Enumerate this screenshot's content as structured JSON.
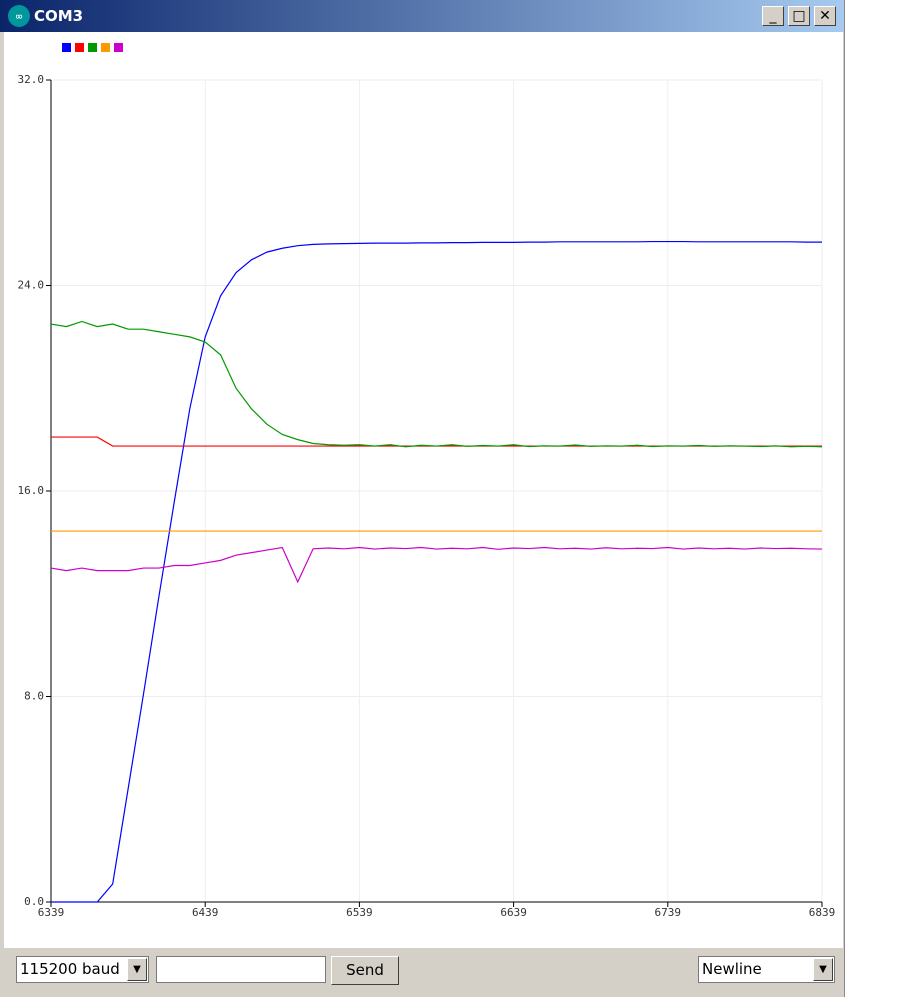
{
  "window": {
    "title": "COM3"
  },
  "controls": {
    "baud": "115200 baud",
    "send": "Send",
    "line_ending": "Newline"
  },
  "chart_data": {
    "type": "line",
    "x": [
      6339,
      6349,
      6359,
      6369,
      6379,
      6389,
      6399,
      6409,
      6419,
      6429,
      6439,
      6449,
      6459,
      6469,
      6479,
      6489,
      6499,
      6509,
      6519,
      6529,
      6539,
      6549,
      6559,
      6569,
      6579,
      6589,
      6599,
      6609,
      6619,
      6629,
      6639,
      6649,
      6659,
      6669,
      6679,
      6689,
      6699,
      6709,
      6719,
      6729,
      6739,
      6749,
      6759,
      6769,
      6779,
      6789,
      6799,
      6809,
      6819,
      6829,
      6839
    ],
    "series": [
      {
        "color": "#0000ff",
        "values": [
          0,
          0,
          0,
          0,
          0.7,
          4.4,
          8.1,
          11.9,
          15.6,
          19.2,
          22.0,
          23.6,
          24.5,
          25.0,
          25.3,
          25.45,
          25.55,
          25.6,
          25.62,
          25.63,
          25.64,
          25.65,
          25.65,
          25.65,
          25.66,
          25.66,
          25.67,
          25.67,
          25.68,
          25.68,
          25.68,
          25.69,
          25.69,
          25.7,
          25.7,
          25.7,
          25.7,
          25.7,
          25.7,
          25.71,
          25.71,
          25.71,
          25.7,
          25.7,
          25.7,
          25.7,
          25.7,
          25.7,
          25.7,
          25.69,
          25.69
        ]
      },
      {
        "color": "#ff0000",
        "values": [
          18.1,
          18.1,
          18.1,
          18.1,
          17.75,
          17.75,
          17.75,
          17.75,
          17.75,
          17.75,
          17.75,
          17.75,
          17.75,
          17.75,
          17.75,
          17.75,
          17.75,
          17.75,
          17.75,
          17.75,
          17.75,
          17.75,
          17.75,
          17.75,
          17.75,
          17.75,
          17.75,
          17.75,
          17.75,
          17.75,
          17.75,
          17.75,
          17.75,
          17.75,
          17.75,
          17.75,
          17.75,
          17.75,
          17.75,
          17.75,
          17.75,
          17.75,
          17.75,
          17.75,
          17.75,
          17.75,
          17.75,
          17.75,
          17.75,
          17.75,
          17.75
        ]
      },
      {
        "color": "#009900",
        "values": [
          22.5,
          22.4,
          22.6,
          22.4,
          22.5,
          22.3,
          22.3,
          22.2,
          22.1,
          22.0,
          21.8,
          21.3,
          20.0,
          19.2,
          18.6,
          18.2,
          18.0,
          17.85,
          17.8,
          17.78,
          17.8,
          17.75,
          17.8,
          17.72,
          17.78,
          17.75,
          17.8,
          17.74,
          17.77,
          17.75,
          17.8,
          17.73,
          17.76,
          17.75,
          17.79,
          17.74,
          17.76,
          17.75,
          17.78,
          17.73,
          17.76,
          17.75,
          17.77,
          17.74,
          17.76,
          17.75,
          17.73,
          17.76,
          17.72,
          17.74,
          17.72
        ]
      },
      {
        "color": "#ff9900",
        "values": [
          14.44,
          14.44,
          14.44,
          14.44,
          14.44,
          14.44,
          14.44,
          14.44,
          14.44,
          14.44,
          14.44,
          14.44,
          14.44,
          14.44,
          14.44,
          14.44,
          14.44,
          14.44,
          14.44,
          14.44,
          14.44,
          14.44,
          14.44,
          14.44,
          14.44,
          14.44,
          14.44,
          14.44,
          14.44,
          14.44,
          14.44,
          14.44,
          14.44,
          14.44,
          14.44,
          14.44,
          14.44,
          14.44,
          14.44,
          14.44,
          14.44,
          14.44,
          14.44,
          14.44,
          14.44,
          14.44,
          14.44,
          14.44,
          14.44,
          14.44,
          14.44
        ]
      },
      {
        "color": "#cc00cc",
        "values": [
          13.0,
          12.9,
          13.0,
          12.9,
          12.9,
          12.9,
          13.0,
          13.0,
          13.1,
          13.1,
          13.2,
          13.3,
          13.5,
          13.6,
          13.7,
          13.8,
          12.46,
          13.75,
          13.78,
          13.75,
          13.8,
          13.74,
          13.78,
          13.76,
          13.8,
          13.74,
          13.77,
          13.75,
          13.8,
          13.73,
          13.78,
          13.76,
          13.8,
          13.75,
          13.77,
          13.74,
          13.79,
          13.75,
          13.77,
          13.76,
          13.8,
          13.74,
          13.78,
          13.75,
          13.77,
          13.74,
          13.78,
          13.76,
          13.77,
          13.75,
          13.74
        ]
      }
    ],
    "xlim": [
      6339,
      6839
    ],
    "xticks": [
      6339,
      6439,
      6539,
      6639,
      6739,
      6839
    ],
    "ylim": [
      0,
      32
    ],
    "yticks": [
      {
        "value": 0,
        "label": "0.0"
      },
      {
        "value": 8,
        "label": "8.0"
      },
      {
        "value": 16,
        "label": "16.0"
      },
      {
        "value": 24,
        "label": "24.0"
      },
      {
        "value": 32,
        "label": "32.0"
      }
    ],
    "grid": true
  }
}
